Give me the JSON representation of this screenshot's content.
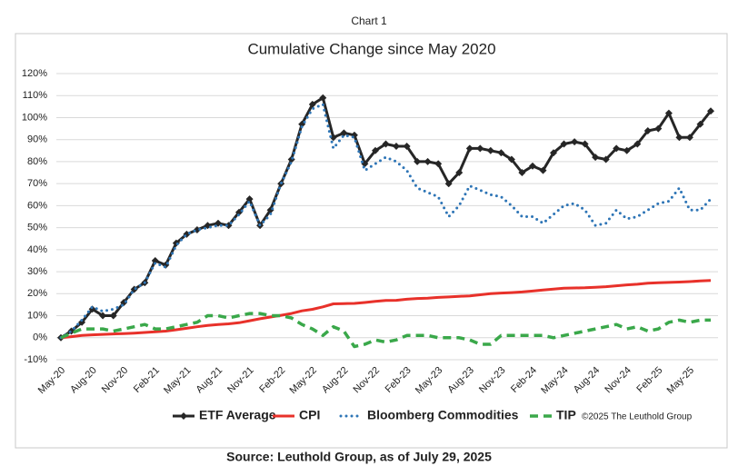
{
  "chart_data": {
    "type": "line",
    "header": "Chart 1",
    "title": "Cumulative Change since May 2020",
    "source": "Source: Leuthold Group, as of July 29, 2025",
    "copyright": "©2025 The Leuthold Group",
    "categories": [
      "May-20",
      null,
      null,
      "Aug-20",
      null,
      null,
      "Nov-20",
      null,
      null,
      "Feb-21",
      null,
      null,
      "May-21",
      null,
      null,
      "Aug-21",
      null,
      null,
      "Nov-21",
      null,
      null,
      "Feb-22",
      null,
      null,
      "May-22",
      null,
      null,
      "Aug-22",
      null,
      null,
      "Nov-22",
      null,
      null,
      "Feb-23",
      null,
      null,
      "May-23",
      null,
      null,
      "Aug-23",
      null,
      null,
      "Nov-23",
      null,
      null,
      "Feb-24",
      null,
      null,
      "May-24",
      null,
      null,
      "Aug-24",
      null,
      null,
      "Nov-24",
      null,
      null,
      "Feb-25",
      null,
      null,
      "May-25",
      null,
      null
    ],
    "series": [
      {
        "name": "ETF Average",
        "color": "#262626",
        "style": "solid-diamond",
        "values": [
          0,
          3,
          7,
          13,
          10,
          10,
          16,
          22,
          25,
          35,
          33,
          43,
          47,
          49,
          51,
          52,
          51,
          57,
          63,
          51,
          58,
          70,
          81,
          97,
          106,
          109,
          91,
          93,
          92,
          79,
          85,
          88,
          87,
          87,
          80,
          80,
          79,
          70,
          75,
          86,
          86,
          85,
          84,
          81,
          75,
          78,
          76,
          84,
          88,
          89,
          88,
          82,
          81,
          86,
          85,
          88,
          94,
          95,
          102,
          91,
          91,
          97,
          103
        ]
      },
      {
        "name": "CPI",
        "color": "#e8312a",
        "style": "solid",
        "values": [
          0,
          0.5,
          1,
          1.3,
          1.5,
          1.7,
          1.9,
          2.1,
          2.4,
          2.7,
          3.0,
          3.6,
          4.3,
          5.0,
          5.6,
          6.0,
          6.3,
          6.8,
          7.7,
          8.6,
          9.4,
          10.2,
          11.0,
          12.2,
          12.9,
          14.0,
          15.4,
          15.5,
          15.6,
          16.0,
          16.5,
          16.9,
          17.0,
          17.5,
          17.8,
          18.0,
          18.3,
          18.5,
          18.8,
          19.0,
          19.5,
          20.0,
          20.3,
          20.5,
          20.8,
          21.2,
          21.7,
          22.1,
          22.5,
          22.6,
          22.7,
          22.9,
          23.2,
          23.6,
          24.0,
          24.3,
          24.8,
          25.0,
          25.1,
          25.3,
          25.5,
          25.8,
          26.0
        ]
      },
      {
        "name": "Bloomberg Commodities",
        "color": "#2e75b6",
        "style": "dotted",
        "values": [
          0,
          3,
          8,
          14,
          12,
          13,
          15,
          22,
          25,
          34,
          32,
          42,
          47,
          49,
          50,
          51,
          51,
          56,
          62,
          51,
          56,
          70,
          80,
          96,
          104,
          106,
          86,
          92,
          91,
          76,
          79,
          82,
          80,
          76,
          68,
          66,
          64,
          55,
          60,
          69,
          67,
          65,
          64,
          60,
          55,
          55,
          52,
          56,
          60,
          61,
          58,
          51,
          52,
          58,
          54,
          55,
          58,
          61,
          62,
          68,
          58,
          58,
          63
        ]
      },
      {
        "name": "TIP",
        "color": "#3aa84a",
        "style": "dashed",
        "values": [
          0,
          2,
          4,
          4,
          4,
          3,
          4,
          5,
          6,
          4,
          4,
          5,
          6,
          7,
          10,
          10,
          9,
          10,
          11,
          11,
          10,
          10,
          9,
          6,
          4,
          1,
          5,
          3,
          -4,
          -3,
          -1,
          -2,
          -1,
          1,
          1,
          1,
          0,
          0,
          0,
          -1,
          -3,
          -3,
          1,
          1,
          1,
          1,
          1,
          0,
          1,
          2,
          3,
          4,
          5,
          6,
          4,
          5,
          3,
          4,
          7,
          8,
          7,
          8,
          8
        ]
      }
    ],
    "ylim": [
      -10,
      120
    ],
    "yticks": [
      {
        "value": -10,
        "label": "-10%"
      },
      {
        "value": 0,
        "label": "0%"
      },
      {
        "value": 10,
        "label": "10%"
      },
      {
        "value": 20,
        "label": "20%"
      },
      {
        "value": 30,
        "label": "30%"
      },
      {
        "value": 40,
        "label": "40%"
      },
      {
        "value": 50,
        "label": "50%"
      },
      {
        "value": 60,
        "label": "60%"
      },
      {
        "value": 70,
        "label": "70%"
      },
      {
        "value": 80,
        "label": "80%"
      },
      {
        "value": 90,
        "label": "90%"
      },
      {
        "value": 100,
        "label": "100%"
      },
      {
        "value": 110,
        "label": "110%"
      },
      {
        "value": 120,
        "label": "120%"
      }
    ],
    "grid": true
  }
}
